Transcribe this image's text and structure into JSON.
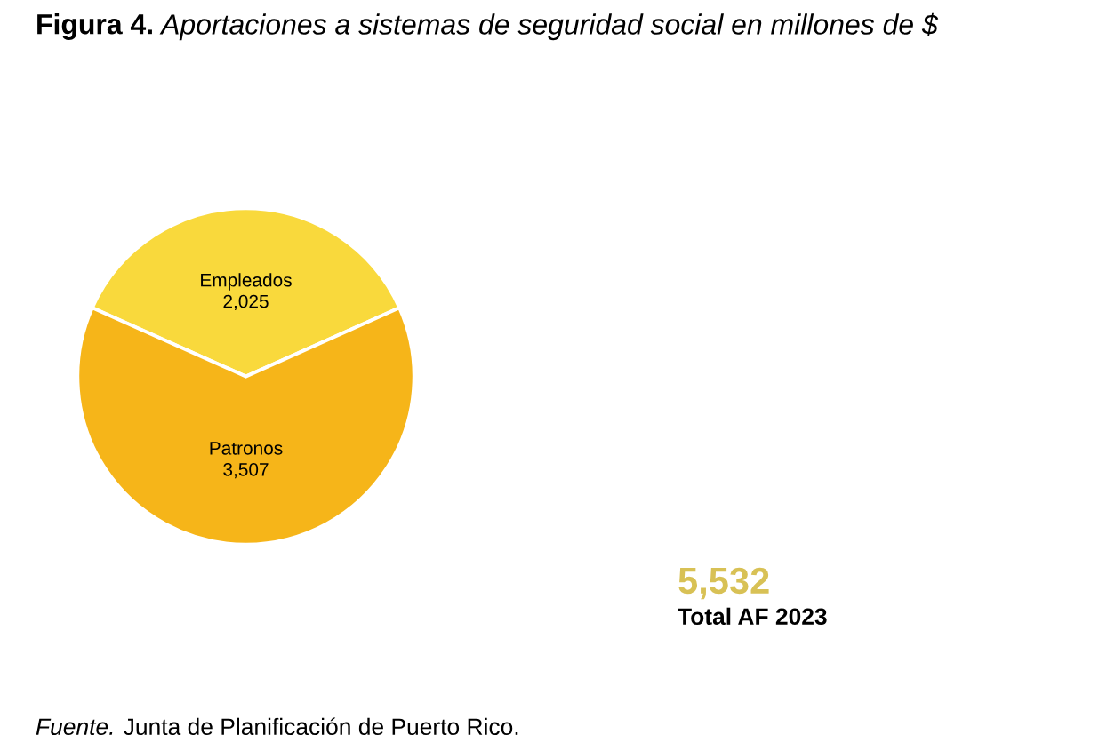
{
  "chart_data": {
    "type": "pie",
    "title": "Figura 4.",
    "subtitle": "Aportaciones a sistemas de seguridad social en millones de $",
    "categories": [
      "Empleados",
      "Patronos"
    ],
    "values": [
      2025,
      3507
    ],
    "colors": [
      "#f9d93c",
      "#f6b519"
    ],
    "value_labels": [
      "2,025",
      "3,507"
    ],
    "legend": false,
    "annotations": [
      "5,532",
      "Total AF 2023",
      "Fuente. Junta de Planificación de Puerto Rico."
    ]
  }
}
